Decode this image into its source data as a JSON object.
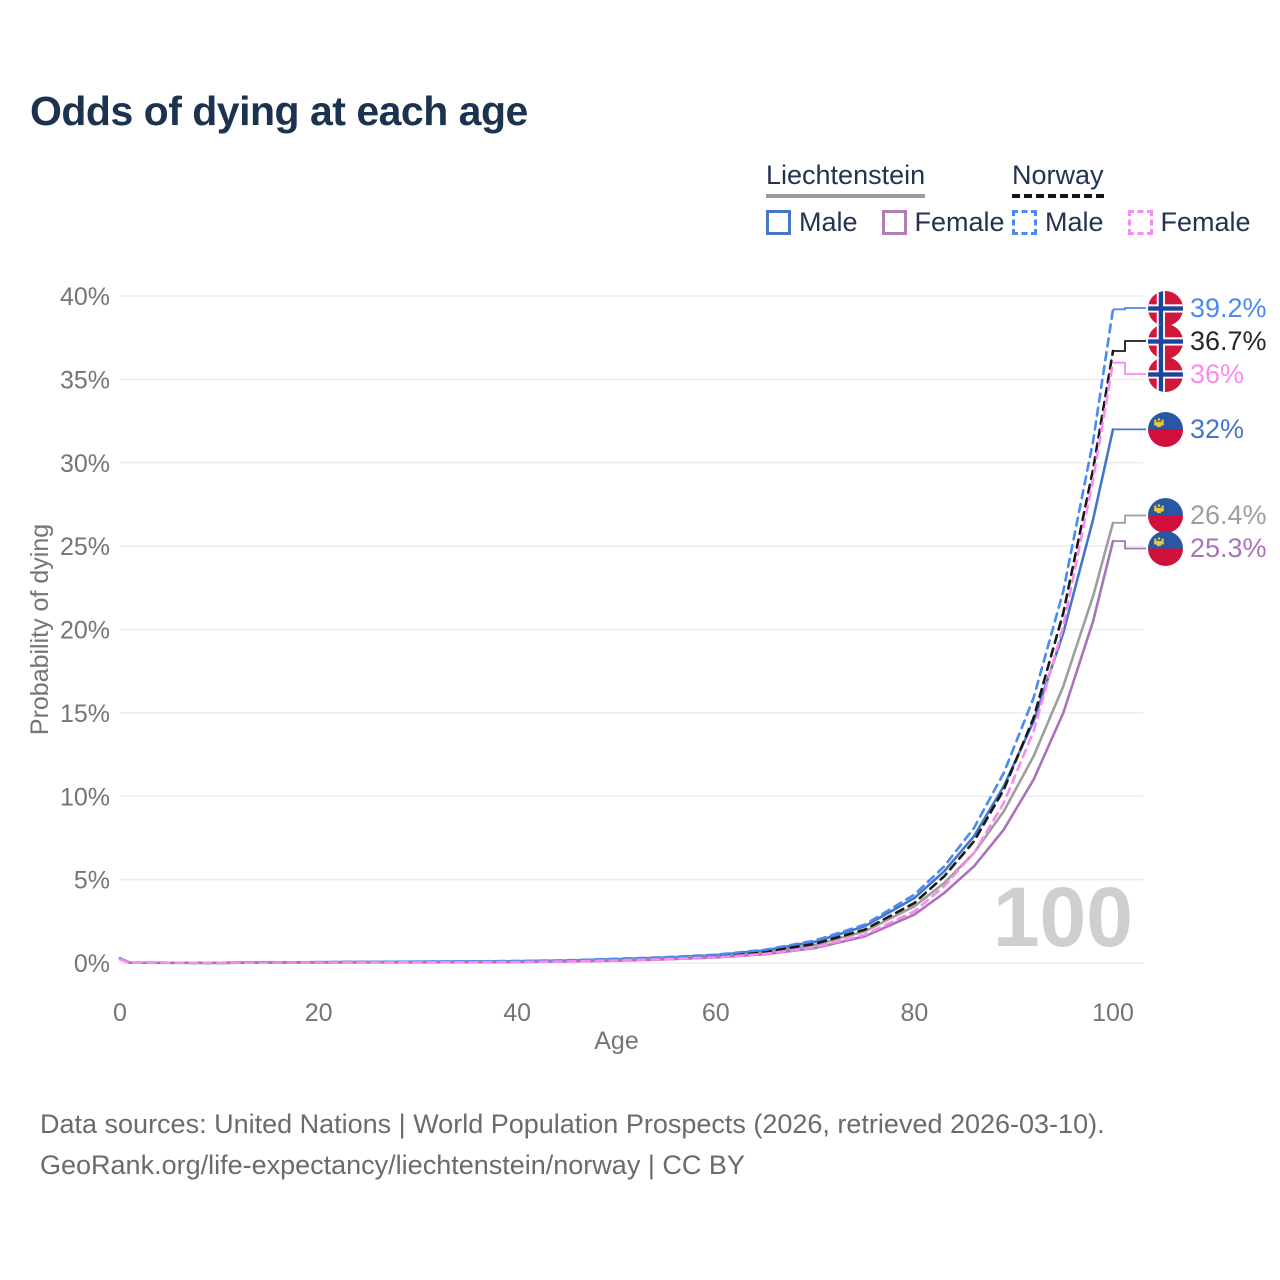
{
  "title": "Odds of dying at each age",
  "legend": {
    "groups": [
      {
        "label": "Liechtenstein",
        "line_style": "solid",
        "line_color": "#9b9b9b",
        "items": [
          {
            "label": "Male",
            "color": "#4577c7",
            "dashed": false
          },
          {
            "label": "Female",
            "color": "#b27cb4",
            "dashed": false
          }
        ]
      },
      {
        "label": "Norway",
        "line_style": "dashed",
        "line_color": "#141414",
        "items": [
          {
            "label": "Male",
            "color": "#4a8af4",
            "dashed": true
          },
          {
            "label": "Female",
            "color": "#fb8af0",
            "dashed": true
          }
        ]
      }
    ]
  },
  "chart_data": {
    "type": "line",
    "title": "Odds of dying at each age",
    "xlabel": "Age",
    "ylabel": "Probability of dying",
    "xlim": [
      0,
      100
    ],
    "ylim": [
      0,
      40
    ],
    "x_ticks": [
      0,
      20,
      40,
      60,
      80,
      100
    ],
    "y_ticks": [
      {
        "value": 0,
        "label": "0%"
      },
      {
        "value": 5,
        "label": "5%"
      },
      {
        "value": 10,
        "label": "10%"
      },
      {
        "value": 15,
        "label": "15%"
      },
      {
        "value": 20,
        "label": "20%"
      },
      {
        "value": 25,
        "label": "25%"
      },
      {
        "value": 30,
        "label": "30%"
      },
      {
        "value": 35,
        "label": "35%"
      },
      {
        "value": 40,
        "label": "40%"
      }
    ],
    "grid": "horizontal",
    "legend_position": "top-right",
    "hover_age_watermark": "100",
    "x_ages": [
      0,
      1,
      10,
      20,
      30,
      40,
      45,
      50,
      55,
      60,
      65,
      70,
      75,
      80,
      83,
      86,
      89,
      92,
      95,
      98,
      100
    ],
    "series": [
      {
        "id": "liechtenstein-male",
        "country": "Liechtenstein",
        "sex": "Male",
        "flag": "liechtenstein",
        "color": "#4577c7",
        "dashed": false,
        "end_value": 32,
        "end_label": "32%",
        "values": [
          0.28,
          0.02,
          0.01,
          0.05,
          0.08,
          0.11,
          0.15,
          0.23,
          0.33,
          0.47,
          0.76,
          1.28,
          2.2,
          3.9,
          5.5,
          7.6,
          10.6,
          14.5,
          19.8,
          26.6,
          32.0
        ]
      },
      {
        "id": "liechtenstein-all",
        "country": "Liechtenstein",
        "sex": "Both",
        "flag": "liechtenstein",
        "color": "#9e9e9e",
        "dashed": false,
        "end_value": 26.4,
        "end_label": "26.4%",
        "values": [
          0.25,
          0.02,
          0.01,
          0.04,
          0.06,
          0.09,
          0.12,
          0.19,
          0.28,
          0.4,
          0.64,
          1.08,
          1.9,
          3.4,
          4.8,
          6.6,
          9.1,
          12.4,
          16.6,
          22.0,
          26.4
        ]
      },
      {
        "id": "liechtenstein-female",
        "country": "Liechtenstein",
        "sex": "Female",
        "flag": "liechtenstein",
        "color": "#a873b8",
        "dashed": false,
        "end_value": 25.3,
        "end_label": "25.3%",
        "values": [
          0.22,
          0.02,
          0.01,
          0.03,
          0.04,
          0.06,
          0.09,
          0.14,
          0.22,
          0.33,
          0.53,
          0.9,
          1.6,
          2.9,
          4.2,
          5.8,
          8.0,
          11.0,
          15.0,
          20.5,
          25.3
        ]
      },
      {
        "id": "norway-all",
        "country": "Norway",
        "sex": "Both",
        "flag": "norway",
        "color": "#1a1a1a",
        "dashed": true,
        "end_value": 36.7,
        "end_label": "36.7%",
        "label_color": "#262626",
        "values": [
          0.25,
          0.02,
          0.01,
          0.04,
          0.06,
          0.09,
          0.13,
          0.2,
          0.29,
          0.42,
          0.68,
          1.15,
          2.0,
          3.6,
          5.2,
          7.3,
          10.4,
          14.7,
          21.0,
          29.6,
          36.7
        ]
      },
      {
        "id": "norway-male",
        "country": "Norway",
        "sex": "Male",
        "flag": "norway",
        "color": "#4a8af4",
        "dashed": true,
        "end_value": 39.2,
        "end_label": "39.2%",
        "values": [
          0.28,
          0.02,
          0.01,
          0.05,
          0.08,
          0.12,
          0.16,
          0.25,
          0.35,
          0.5,
          0.8,
          1.35,
          2.3,
          4.1,
          5.8,
          8.1,
          11.4,
          15.9,
          22.3,
          31.3,
          39.2
        ]
      },
      {
        "id": "norway-female",
        "country": "Norway",
        "sex": "Female",
        "flag": "norway",
        "color": "#fb8af0",
        "dashed": true,
        "end_value": 36,
        "end_label": "36%",
        "values": [
          0.22,
          0.02,
          0.01,
          0.03,
          0.04,
          0.06,
          0.09,
          0.15,
          0.23,
          0.34,
          0.55,
          0.95,
          1.7,
          3.1,
          4.6,
          6.6,
          9.6,
          13.9,
          20.2,
          29.0,
          36.0
        ]
      }
    ]
  },
  "footer": {
    "line1": "Data sources: United Nations | World Population Prospects (2026, retrieved 2026-03-10).",
    "line2": "GeoRank.org/life-expectancy/liechtenstein/norway | CC BY"
  }
}
